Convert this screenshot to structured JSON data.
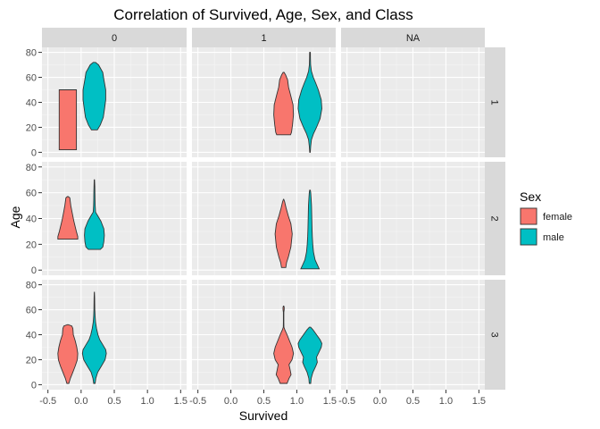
{
  "chart_data": {
    "type": "violin",
    "title": "Correlation of Survived, Age, Sex, and Class",
    "xlabel": "Survived",
    "ylabel": "Age",
    "xlim": [
      -0.5,
      1.5
    ],
    "ylim": [
      0,
      80
    ],
    "x_ticks": [
      "-0.5",
      "0.0",
      "0.5",
      "1.0",
      "1.5"
    ],
    "y_ticks": [
      "0",
      "20",
      "40",
      "60",
      "80"
    ],
    "grid": true,
    "facet_cols": [
      "0",
      "1",
      "NA"
    ],
    "facet_rows": [
      "1",
      "2",
      "3"
    ],
    "legend": {
      "title": "Sex",
      "position": "right",
      "entries": [
        {
          "label": "female",
          "color": "#F8766D"
        },
        {
          "label": "male",
          "color": "#00BFC4"
        }
      ]
    },
    "violins": [
      {
        "col": "0",
        "row": "1",
        "sex": "female",
        "x": -0.2,
        "maxWidth": 0.26,
        "profile": [
          [
            2,
            1
          ],
          [
            10,
            1
          ],
          [
            20,
            1
          ],
          [
            30,
            1
          ],
          [
            40,
            1
          ],
          [
            48,
            1
          ],
          [
            50,
            1
          ]
        ]
      },
      {
        "col": "0",
        "row": "1",
        "sex": "male",
        "x": 0.2,
        "maxWidth": 0.36,
        "profile": [
          [
            18,
            0.25
          ],
          [
            22,
            0.5
          ],
          [
            28,
            0.75
          ],
          [
            35,
            0.85
          ],
          [
            42,
            0.95
          ],
          [
            50,
            0.95
          ],
          [
            58,
            0.8
          ],
          [
            64,
            0.7
          ],
          [
            70,
            0.35
          ],
          [
            72,
            0.1
          ]
        ]
      },
      {
        "col": "1",
        "row": "1",
        "sex": "female",
        "x": 0.8,
        "maxWidth": 0.3,
        "profile": [
          [
            14,
            0.7
          ],
          [
            16,
            0.8
          ],
          [
            22,
            0.9
          ],
          [
            30,
            1.0
          ],
          [
            38,
            0.95
          ],
          [
            46,
            0.7
          ],
          [
            52,
            0.5
          ],
          [
            58,
            0.4
          ],
          [
            62,
            0.2
          ],
          [
            64,
            0.05
          ]
        ]
      },
      {
        "col": "1",
        "row": "1",
        "sex": "male",
        "x": 1.2,
        "maxWidth": 0.36,
        "profile": [
          [
            0,
            0.02
          ],
          [
            5,
            0.06
          ],
          [
            10,
            0.12
          ],
          [
            15,
            0.3
          ],
          [
            20,
            0.55
          ],
          [
            27,
            0.85
          ],
          [
            35,
            1.0
          ],
          [
            42,
            0.95
          ],
          [
            50,
            0.7
          ],
          [
            55,
            0.5
          ],
          [
            60,
            0.28
          ],
          [
            65,
            0.12
          ],
          [
            70,
            0.05
          ],
          [
            75,
            0.04
          ],
          [
            80,
            0.03
          ]
        ]
      },
      {
        "col": "0",
        "row": "2",
        "sex": "female",
        "x": -0.2,
        "maxWidth": 0.3,
        "profile": [
          [
            24,
            1.0
          ],
          [
            26,
            1.0
          ],
          [
            30,
            0.85
          ],
          [
            38,
            0.6
          ],
          [
            45,
            0.42
          ],
          [
            50,
            0.3
          ],
          [
            56,
            0.2
          ],
          [
            57,
            0.05
          ]
        ]
      },
      {
        "col": "0",
        "row": "2",
        "sex": "male",
        "x": 0.2,
        "maxWidth": 0.3,
        "profile": [
          [
            16,
            0.6
          ],
          [
            18,
            0.85
          ],
          [
            22,
            0.95
          ],
          [
            27,
            1.0
          ],
          [
            32,
            0.95
          ],
          [
            38,
            0.65
          ],
          [
            42,
            0.35
          ],
          [
            45,
            0.12
          ],
          [
            50,
            0.08
          ],
          [
            55,
            0.06
          ],
          [
            60,
            0.05
          ],
          [
            65,
            0.04
          ],
          [
            70,
            0.02
          ]
        ]
      },
      {
        "col": "1",
        "row": "2",
        "sex": "female",
        "x": 0.8,
        "maxWidth": 0.26,
        "profile": [
          [
            2,
            0.25
          ],
          [
            6,
            0.35
          ],
          [
            10,
            0.55
          ],
          [
            18,
            0.85
          ],
          [
            28,
            1.0
          ],
          [
            36,
            0.85
          ],
          [
            42,
            0.55
          ],
          [
            48,
            0.3
          ],
          [
            53,
            0.12
          ],
          [
            55,
            0.02
          ]
        ]
      },
      {
        "col": "1",
        "row": "2",
        "sex": "male",
        "x": 1.2,
        "maxWidth": 0.28,
        "profile": [
          [
            1,
            1.0
          ],
          [
            4,
            0.8
          ],
          [
            8,
            0.55
          ],
          [
            14,
            0.38
          ],
          [
            20,
            0.3
          ],
          [
            26,
            0.25
          ],
          [
            32,
            0.22
          ],
          [
            38,
            0.2
          ],
          [
            44,
            0.18
          ],
          [
            50,
            0.16
          ],
          [
            56,
            0.12
          ],
          [
            60,
            0.08
          ],
          [
            62,
            0.04
          ]
        ]
      },
      {
        "col": "0",
        "row": "3",
        "sex": "female",
        "x": -0.2,
        "maxWidth": 0.3,
        "profile": [
          [
            1,
            0.1
          ],
          [
            5,
            0.25
          ],
          [
            10,
            0.5
          ],
          [
            15,
            0.75
          ],
          [
            20,
            0.95
          ],
          [
            25,
            1.0
          ],
          [
            30,
            0.9
          ],
          [
            35,
            0.75
          ],
          [
            40,
            0.55
          ],
          [
            45,
            0.5
          ],
          [
            47,
            0.4
          ],
          [
            48,
            0.05
          ]
        ]
      },
      {
        "col": "0",
        "row": "3",
        "sex": "male",
        "x": 0.2,
        "maxWidth": 0.36,
        "profile": [
          [
            1,
            0.06
          ],
          [
            5,
            0.12
          ],
          [
            10,
            0.28
          ],
          [
            15,
            0.6
          ],
          [
            20,
            0.9
          ],
          [
            25,
            1.0
          ],
          [
            28,
            0.95
          ],
          [
            32,
            0.7
          ],
          [
            36,
            0.45
          ],
          [
            40,
            0.3
          ],
          [
            45,
            0.18
          ],
          [
            50,
            0.1
          ],
          [
            55,
            0.06
          ],
          [
            60,
            0.04
          ],
          [
            65,
            0.03
          ],
          [
            70,
            0.02
          ],
          [
            74,
            0.01
          ]
        ]
      },
      {
        "col": "1",
        "row": "3",
        "sex": "female",
        "x": 0.8,
        "maxWidth": 0.3,
        "profile": [
          [
            1,
            0.35
          ],
          [
            5,
            0.55
          ],
          [
            8,
            0.75
          ],
          [
            12,
            0.65
          ],
          [
            16,
            0.55
          ],
          [
            20,
            0.85
          ],
          [
            25,
            1.0
          ],
          [
            30,
            0.85
          ],
          [
            35,
            0.6
          ],
          [
            40,
            0.35
          ],
          [
            44,
            0.12
          ],
          [
            46,
            0.03
          ],
          [
            50,
            0.02
          ],
          [
            58,
            0.02
          ],
          [
            60,
            0.06
          ],
          [
            62,
            0.06
          ],
          [
            63,
            0.02
          ]
        ]
      },
      {
        "col": "1",
        "row": "3",
        "sex": "male",
        "x": 1.2,
        "maxWidth": 0.36,
        "profile": [
          [
            1,
            0.06
          ],
          [
            5,
            0.1
          ],
          [
            10,
            0.25
          ],
          [
            15,
            0.5
          ],
          [
            18,
            0.62
          ],
          [
            22,
            0.55
          ],
          [
            26,
            0.75
          ],
          [
            30,
            0.95
          ],
          [
            33,
            1.0
          ],
          [
            36,
            0.85
          ],
          [
            40,
            0.55
          ],
          [
            44,
            0.25
          ],
          [
            46,
            0.05
          ]
        ]
      }
    ]
  }
}
